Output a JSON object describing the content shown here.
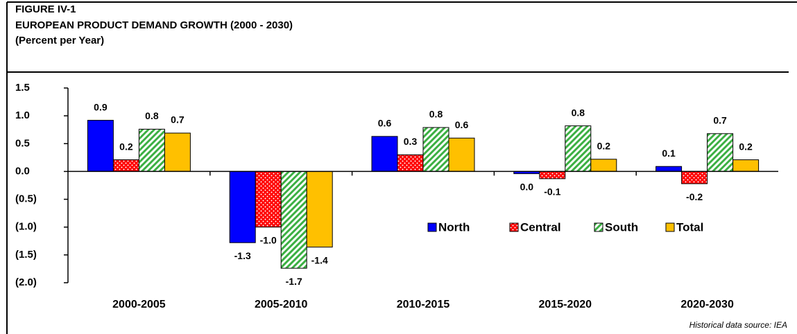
{
  "chart_data": {
    "type": "bar",
    "figure_label": "FIGURE IV-1",
    "title": "EUROPEAN PRODUCT DEMAND GROWTH (2000 - 2030)",
    "subtitle": "(Percent per Year)",
    "source": "Historical data source: IEA",
    "categories": [
      "2000-2005",
      "2005-2010",
      "2010-2015",
      "2015-2020",
      "2020-2030"
    ],
    "series": [
      {
        "name": "North",
        "color": "#0000ff",
        "pattern": "solid",
        "values": [
          0.92,
          -1.28,
          0.63,
          -0.04,
          0.09
        ],
        "value_labels": [
          "0.9",
          "-1.3",
          "0.6",
          "0.0",
          "0.1"
        ]
      },
      {
        "name": "Central",
        "color": "#ff0000",
        "pattern": "dots",
        "values": [
          0.21,
          -1.0,
          0.3,
          -0.13,
          -0.22
        ],
        "value_labels": [
          "0.2",
          "-1.0",
          "0.3",
          "-0.1",
          "-0.2"
        ]
      },
      {
        "name": "South",
        "color": "#3cb043",
        "pattern": "stripes",
        "values": [
          0.76,
          -1.74,
          0.79,
          0.82,
          0.68
        ],
        "value_labels": [
          "0.8",
          "-1.7",
          "0.8",
          "0.8",
          "0.7"
        ]
      },
      {
        "name": "Total",
        "color": "#ffc000",
        "pattern": "solid",
        "values": [
          0.69,
          -1.36,
          0.6,
          0.22,
          0.21
        ],
        "value_labels": [
          "0.7",
          "-1.4",
          "0.6",
          "0.2",
          "0.2"
        ]
      }
    ],
    "ylim": [
      -2.0,
      1.5
    ],
    "yticks": [
      {
        "value": -2.0,
        "label": "(2.0)"
      },
      {
        "value": -1.5,
        "label": "(1.5)"
      },
      {
        "value": -1.0,
        "label": "(1.0)"
      },
      {
        "value": -0.5,
        "label": "(0.5)"
      },
      {
        "value": 0,
        "label": "0.0"
      },
      {
        "value": 0.5,
        "label": "0.5"
      },
      {
        "value": 1.0,
        "label": "1.0"
      },
      {
        "value": 1.5,
        "label": "1.5"
      }
    ],
    "grid": false
  }
}
